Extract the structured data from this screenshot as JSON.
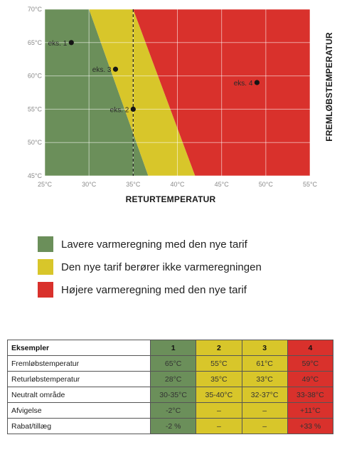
{
  "chart_data": {
    "type": "scatter",
    "xlabel": "RETURTEMPERATUR",
    "ylabel": "FREMLØBSTEMPERATUR",
    "xlim": [
      25,
      55
    ],
    "ylim": [
      45,
      70
    ],
    "x_ticks": [
      "25°C",
      "30°C",
      "35°C",
      "40°C",
      "45°C",
      "50°C",
      "55°C"
    ],
    "y_ticks": [
      "45°C",
      "50°C",
      "55°C",
      "60°C",
      "65°C",
      "70°C"
    ],
    "grid": true,
    "reference_line_x": 35,
    "regions": [
      {
        "color": "#6b8f5a",
        "polygon": [
          [
            25,
            45
          ],
          [
            25,
            70
          ],
          [
            30,
            70
          ],
          [
            36.7,
            45
          ]
        ]
      },
      {
        "color": "#d8c62a",
        "polygon": [
          [
            30,
            70
          ],
          [
            36.7,
            45
          ],
          [
            42,
            45
          ],
          [
            35,
            70
          ]
        ]
      },
      {
        "color": "#d9312c",
        "polygon": [
          [
            35,
            70
          ],
          [
            42,
            45
          ],
          [
            55,
            45
          ],
          [
            55,
            70
          ]
        ]
      }
    ],
    "points": [
      {
        "label": "eks. 1",
        "x": 28,
        "y": 65
      },
      {
        "label": "eks. 3",
        "x": 33,
        "y": 61
      },
      {
        "label": "eks. 2",
        "x": 35,
        "y": 55
      },
      {
        "label": "eks. 4",
        "x": 49,
        "y": 59
      }
    ]
  },
  "legend": [
    {
      "label": "Lavere varmeregning med den nye tarif",
      "color": "#6b8f5a"
    },
    {
      "label": "Den nye tarif berører ikke varmeregningen",
      "color": "#d8c62a"
    },
    {
      "label": "Højere varmeregning med den nye tarif",
      "color": "#d9312c"
    }
  ],
  "table": {
    "header": {
      "label": "Eksempler",
      "cols": [
        "1",
        "2",
        "3",
        "4"
      ]
    },
    "col_colors": [
      "#6b8f5a",
      "#d8c62a",
      "#d8c62a",
      "#d9312c"
    ],
    "rows": [
      {
        "label": "Fremløbstemperatur",
        "values": [
          "65°C",
          "55°C",
          "61°C",
          "59°C"
        ]
      },
      {
        "label": "Returløbstemperatur",
        "values": [
          "28°C",
          "35°C",
          "33°C",
          "49°C"
        ]
      },
      {
        "label": "Neutralt område",
        "values": [
          "30-35°C",
          "35-40°C",
          "32-37°C",
          "33-38°C"
        ]
      },
      {
        "label": "Afvigelse",
        "values": [
          "-2°C",
          "–",
          "–",
          "+11°C"
        ]
      },
      {
        "label": "Rabat/tillæg",
        "values": [
          "-2 %",
          "–",
          "–",
          "+33 %"
        ]
      }
    ]
  }
}
